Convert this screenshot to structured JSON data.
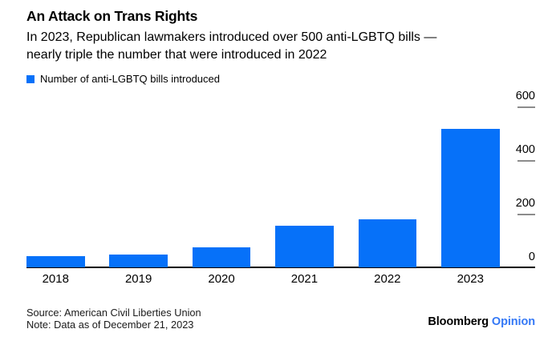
{
  "header": {
    "title": "An Attack on Trans Rights",
    "subtitle_lines": [
      "In 2023, Republican lawmakers introduced over 500 anti-LGBTQ bills —",
      "nearly triple the number that were introduced in 2022"
    ]
  },
  "legend": {
    "label": "Number of anti-LGBTQ bills introduced",
    "swatch_icon": "square-swatch-icon"
  },
  "chart_data": {
    "type": "bar",
    "title": "An Attack on Trans Rights",
    "series_name": "Number of anti-LGBTQ bills introduced",
    "categories": [
      "2018",
      "2019",
      "2020",
      "2021",
      "2022",
      "2023"
    ],
    "values": [
      41,
      48,
      75,
      155,
      180,
      515
    ],
    "xlabel": "",
    "ylabel": "",
    "ylim": [
      0,
      600
    ],
    "yticks": [
      0,
      200,
      400,
      600
    ],
    "yaxis_side": "right",
    "grid": false,
    "legend_position": "top-left",
    "bar_color": "#0671f9"
  },
  "footer": {
    "source": "Source: American Civil Liberties Union",
    "note": "Note: Data as of December 21, 2023",
    "brand": "Bloomberg",
    "brand_suffix": "Opinion"
  },
  "colors": {
    "bar_blue": "#0671f9",
    "opinion_blue": "#3478f6",
    "tick_gray": "#8c8c8c",
    "axis_black": "#000000",
    "note_text": "#1a1a1a"
  }
}
